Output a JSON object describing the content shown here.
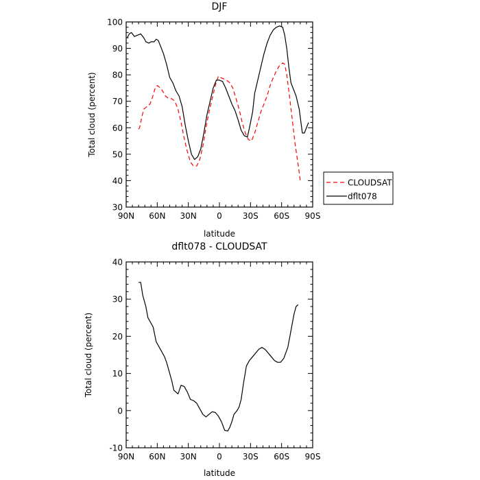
{
  "chart_data": [
    {
      "type": "line",
      "title": "DJF",
      "xlabel": "latitude",
      "ylabel": "Total cloud (percent)",
      "xlim": [
        90,
        -90
      ],
      "ylim": [
        30,
        100
      ],
      "x_ticks": [
        90,
        60,
        30,
        0,
        -30,
        -60,
        -90
      ],
      "x_tick_labels": [
        "90N",
        "60N",
        "30N",
        "0",
        "30S",
        "60S",
        "90S"
      ],
      "y_ticks": [
        30,
        40,
        50,
        60,
        70,
        80,
        90,
        100
      ],
      "y_tick_labels": [
        "30",
        "40",
        "50",
        "60",
        "70",
        "80",
        "90",
        "100"
      ],
      "legend_position": "right",
      "series": [
        {
          "name": "CLOUDSAT",
          "color": "#ff0000",
          "dash": "dashed",
          "points": [
            [
              78,
              59.5
            ],
            [
              77,
              60
            ],
            [
              75,
              64
            ],
            [
              73,
              67
            ],
            [
              70,
              68
            ],
            [
              67,
              69
            ],
            [
              65,
              71
            ],
            [
              62,
              75
            ],
            [
              60,
              76
            ],
            [
              57,
              75
            ],
            [
              55,
              74
            ],
            [
              52,
              72
            ],
            [
              49,
              71
            ],
            [
              46,
              71
            ],
            [
              43,
              70
            ],
            [
              40,
              67
            ],
            [
              37,
              62
            ],
            [
              34,
              56
            ],
            [
              31,
              51
            ],
            [
              28,
              47
            ],
            [
              25,
              45.5
            ],
            [
              22,
              45.5
            ],
            [
              19,
              48
            ],
            [
              16,
              53
            ],
            [
              13,
              60
            ],
            [
              10,
              66
            ],
            [
              7,
              71
            ],
            [
              4,
              76
            ],
            [
              1,
              79.5
            ],
            [
              -1,
              79
            ],
            [
              -4,
              78.5
            ],
            [
              -7,
              78
            ],
            [
              -10,
              77
            ],
            [
              -13,
              75
            ],
            [
              -16,
              71
            ],
            [
              -19,
              67
            ],
            [
              -22,
              62
            ],
            [
              -25,
              58
            ],
            [
              -28,
              55.5
            ],
            [
              -31,
              55
            ],
            [
              -34,
              58
            ],
            [
              -37,
              62
            ],
            [
              -40,
              66
            ],
            [
              -43,
              69
            ],
            [
              -46,
              72
            ],
            [
              -49,
              76
            ],
            [
              -52,
              79
            ],
            [
              -55,
              81.5
            ],
            [
              -58,
              83.5
            ],
            [
              -61,
              84.5
            ],
            [
              -63,
              84
            ],
            [
              -65,
              80
            ],
            [
              -67,
              74
            ],
            [
              -70,
              64
            ],
            [
              -73,
              54
            ],
            [
              -76,
              46
            ],
            [
              -78,
              40
            ]
          ]
        },
        {
          "name": "dflt078",
          "color": "#000000",
          "dash": "solid",
          "points": [
            [
              89,
              94
            ],
            [
              87,
              95.5
            ],
            [
              85,
              96
            ],
            [
              82,
              94.5
            ],
            [
              79,
              95
            ],
            [
              76,
              95.5
            ],
            [
              73,
              94
            ],
            [
              71,
              92.5
            ],
            [
              68,
              92
            ],
            [
              66,
              92.5
            ],
            [
              63,
              92.5
            ],
            [
              61,
              93.5
            ],
            [
              59,
              93
            ],
            [
              57,
              91
            ],
            [
              54,
              88
            ],
            [
              51,
              84
            ],
            [
              48,
              79
            ],
            [
              45,
              77
            ],
            [
              42,
              74
            ],
            [
              39,
              72
            ],
            [
              36,
              68
            ],
            [
              33,
              61
            ],
            [
              30,
              55
            ],
            [
              27,
              50
            ],
            [
              24,
              48
            ],
            [
              21,
              49
            ],
            [
              18,
              52
            ],
            [
              15,
              58
            ],
            [
              12,
              65
            ],
            [
              9,
              70
            ],
            [
              6,
              75
            ],
            [
              3,
              78
            ],
            [
              0,
              78
            ],
            [
              -3,
              77.5
            ],
            [
              -6,
              75
            ],
            [
              -9,
              72
            ],
            [
              -12,
              69
            ],
            [
              -15,
              66.5
            ],
            [
              -18,
              63
            ],
            [
              -21,
              59
            ],
            [
              -24,
              57
            ],
            [
              -27,
              56.5
            ],
            [
              -29,
              60
            ],
            [
              -32,
              66
            ],
            [
              -34,
              73
            ],
            [
              -37,
              78
            ],
            [
              -40,
              83
            ],
            [
              -43,
              88
            ],
            [
              -46,
              92
            ],
            [
              -49,
              95
            ],
            [
              -52,
              97
            ],
            [
              -55,
              98
            ],
            [
              -58,
              98.5
            ],
            [
              -61,
              98
            ],
            [
              -63,
              95
            ],
            [
              -65,
              90
            ],
            [
              -67,
              83
            ],
            [
              -69,
              77
            ],
            [
              -71,
              75
            ],
            [
              -74,
              72
            ],
            [
              -77,
              67
            ],
            [
              -80,
              58
            ],
            [
              -82,
              58
            ],
            [
              -84,
              60
            ],
            [
              -86,
              62
            ]
          ]
        }
      ]
    },
    {
      "type": "line",
      "title": "dflt078 - CLOUDSAT",
      "xlabel": "latitude",
      "ylabel": "Total cloud (percent)",
      "xlim": [
        90,
        -90
      ],
      "ylim": [
        -10,
        40
      ],
      "x_ticks": [
        90,
        60,
        30,
        0,
        -30,
        -60,
        -90
      ],
      "x_tick_labels": [
        "90N",
        "60N",
        "30N",
        "0",
        "30S",
        "60S",
        "90S"
      ],
      "y_ticks": [
        -10,
        0,
        10,
        20,
        30,
        40
      ],
      "y_tick_labels": [
        "-10",
        "0",
        "10",
        "20",
        "30",
        "40"
      ],
      "series": [
        {
          "color": "#000000",
          "dash": "solid",
          "points": [
            [
              78,
              34.5
            ],
            [
              76,
              34.5
            ],
            [
              74,
              31
            ],
            [
              71,
              28
            ],
            [
              69,
              25
            ],
            [
              66,
              23.5
            ],
            [
              64,
              22.5
            ],
            [
              61,
              18.5
            ],
            [
              58,
              17
            ],
            [
              56,
              16
            ],
            [
              53,
              14.5
            ],
            [
              51,
              13
            ],
            [
              48,
              10
            ],
            [
              46,
              8
            ],
            [
              44,
              5.5
            ],
            [
              42,
              5
            ],
            [
              40,
              4.5
            ],
            [
              37,
              6.8
            ],
            [
              34,
              6.5
            ],
            [
              31,
              5
            ],
            [
              28,
              3
            ],
            [
              25,
              2.7
            ],
            [
              22,
              2
            ],
            [
              19,
              0.5
            ],
            [
              16,
              -1
            ],
            [
              13,
              -1.7
            ],
            [
              10,
              -1
            ],
            [
              7,
              -0.3
            ],
            [
              4,
              -0.5
            ],
            [
              1,
              -1.5
            ],
            [
              -2,
              -3
            ],
            [
              -5,
              -5.3
            ],
            [
              -8,
              -5.5
            ],
            [
              -10,
              -4.5
            ],
            [
              -12,
              -3
            ],
            [
              -14,
              -1
            ],
            [
              -17,
              0
            ],
            [
              -19,
              1
            ],
            [
              -21,
              3
            ],
            [
              -23,
              7
            ],
            [
              -26,
              12
            ],
            [
              -29,
              13.5
            ],
            [
              -32,
              14.5
            ],
            [
              -35,
              15.5
            ],
            [
              -38,
              16.5
            ],
            [
              -41,
              17
            ],
            [
              -44,
              16.5
            ],
            [
              -47,
              15.5
            ],
            [
              -50,
              14.5
            ],
            [
              -53,
              13.5
            ],
            [
              -56,
              13
            ],
            [
              -59,
              13
            ],
            [
              -62,
              14
            ],
            [
              -64,
              15.5
            ],
            [
              -66,
              17
            ],
            [
              -68,
              20
            ],
            [
              -70,
              23
            ],
            [
              -72,
              26
            ],
            [
              -74,
              28
            ],
            [
              -76,
              28.5
            ]
          ]
        }
      ]
    }
  ]
}
